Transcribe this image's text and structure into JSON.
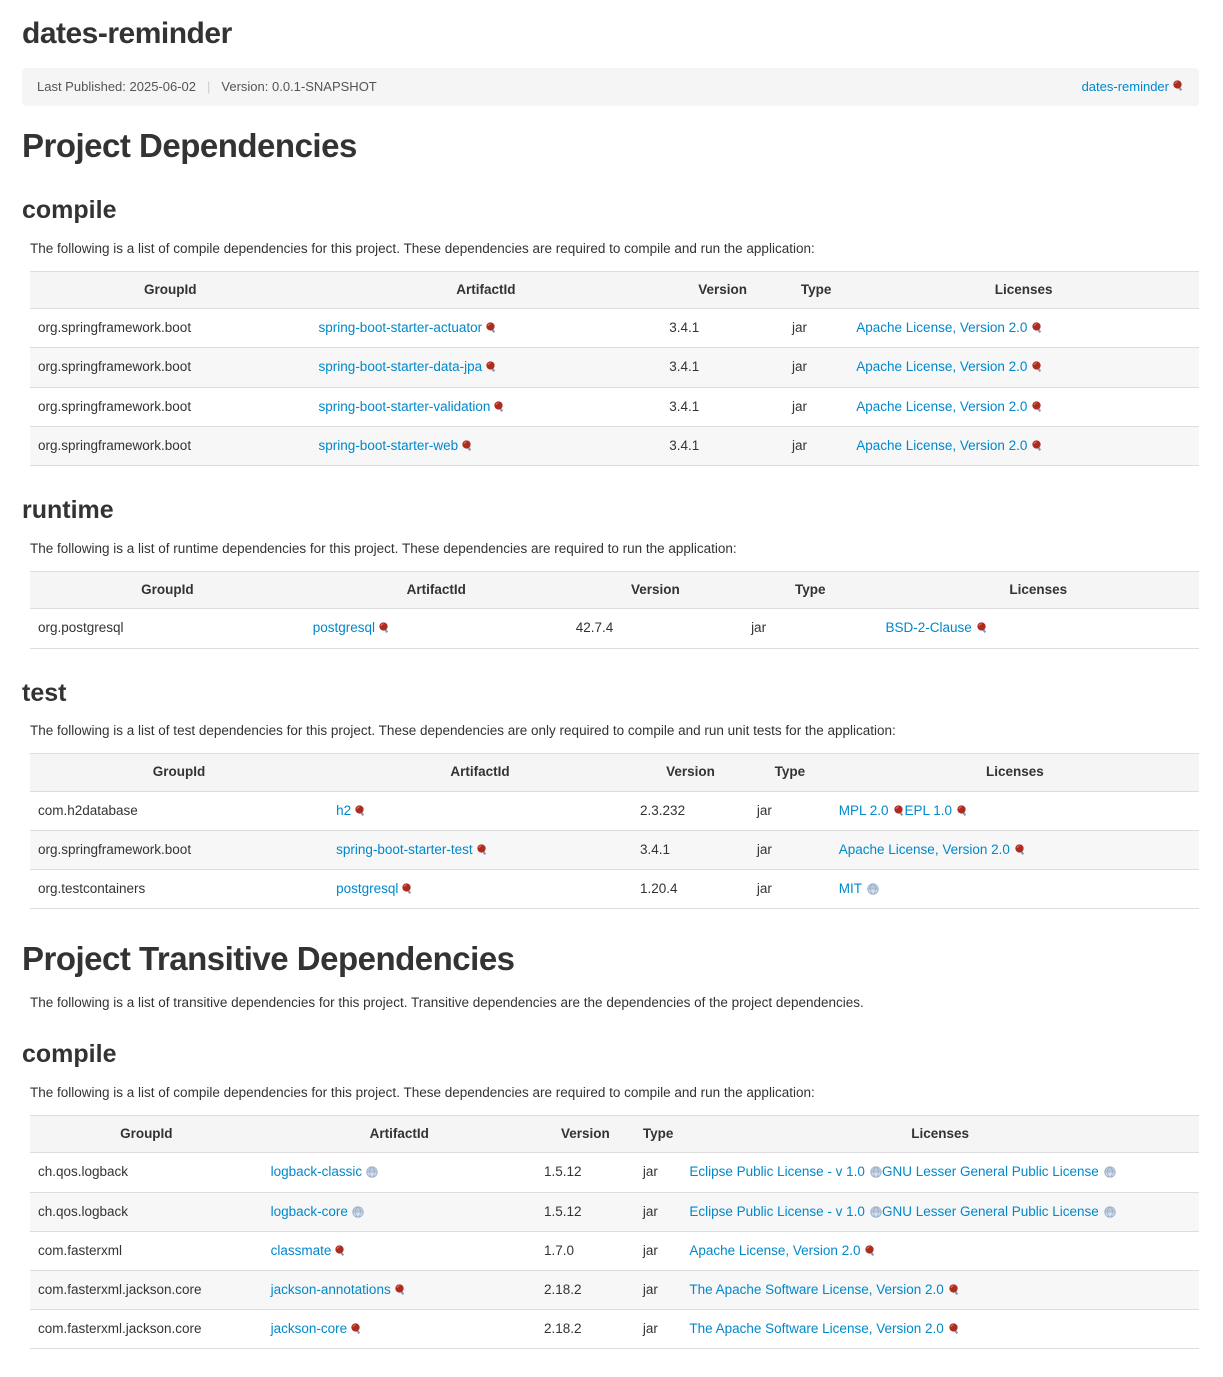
{
  "page_title": "dates-reminder",
  "banner": {
    "last_published": "Last Published: 2025-06-02",
    "version": "Version: 0.0.1-SNAPSHOT",
    "project_link_label": "dates-reminder",
    "project_link_icon": "seal"
  },
  "headings": {
    "project_dependencies": "Project Dependencies",
    "project_transitive_dependencies": "Project Transitive Dependencies"
  },
  "transitive_intro": "The following is a list of transitive dependencies for this project. Transitive dependencies are the dependencies of the project dependencies.",
  "colors": {
    "link_blue": "#0088cc",
    "heading_gray": "#333333",
    "banner_bg": "#f5f5f5",
    "row_stripe": "#f7f7f7",
    "table_border": "#dddddd",
    "seal_icon_red": "#ad2c20",
    "globe_icon_blue": "#93a9c4"
  },
  "sections": [
    {
      "title": "compile",
      "intro": "The following is a list of compile dependencies for this project. These dependencies are required to compile and run the application:",
      "columns": [
        "GroupId",
        "ArtifactId",
        "Version",
        "Type",
        "Licenses"
      ],
      "rows": [
        {
          "group": "org.springframework.boot",
          "artifact": {
            "label": "spring-boot-starter-actuator",
            "icon": "seal"
          },
          "version": "3.4.1",
          "type": "jar",
          "licenses": [
            {
              "label": "Apache License, Version 2.0",
              "icon": "seal"
            }
          ]
        },
        {
          "group": "org.springframework.boot",
          "artifact": {
            "label": "spring-boot-starter-data-jpa",
            "icon": "seal"
          },
          "version": "3.4.1",
          "type": "jar",
          "licenses": [
            {
              "label": "Apache License, Version 2.0",
              "icon": "seal"
            }
          ]
        },
        {
          "group": "org.springframework.boot",
          "artifact": {
            "label": "spring-boot-starter-validation",
            "icon": "seal"
          },
          "version": "3.4.1",
          "type": "jar",
          "licenses": [
            {
              "label": "Apache License, Version 2.0",
              "icon": "seal"
            }
          ]
        },
        {
          "group": "org.springframework.boot",
          "artifact": {
            "label": "spring-boot-starter-web",
            "icon": "seal"
          },
          "version": "3.4.1",
          "type": "jar",
          "licenses": [
            {
              "label": "Apache License, Version 2.0",
              "icon": "seal"
            }
          ]
        }
      ]
    },
    {
      "title": "runtime",
      "intro": "The following is a list of runtime dependencies for this project. These dependencies are required to run the application:",
      "columns": [
        "GroupId",
        "ArtifactId",
        "Version",
        "Type",
        "Licenses"
      ],
      "rows": [
        {
          "group": "org.postgresql",
          "artifact": {
            "label": "postgresql",
            "icon": "seal"
          },
          "version": "42.7.4",
          "type": "jar",
          "licenses": [
            {
              "label": "BSD-2-Clause",
              "icon": "seal"
            }
          ]
        }
      ]
    },
    {
      "title": "test",
      "intro": "The following is a list of test dependencies for this project. These dependencies are only required to compile and run unit tests for the application:",
      "columns": [
        "GroupId",
        "ArtifactId",
        "Version",
        "Type",
        "Licenses"
      ],
      "rows": [
        {
          "group": "com.h2database",
          "artifact": {
            "label": "h2",
            "icon": "seal"
          },
          "version": "2.3.232",
          "type": "jar",
          "licenses": [
            {
              "label": "MPL 2.0",
              "icon": "seal"
            },
            {
              "label": "EPL 1.0",
              "icon": "seal"
            }
          ]
        },
        {
          "group": "org.springframework.boot",
          "artifact": {
            "label": "spring-boot-starter-test",
            "icon": "seal"
          },
          "version": "3.4.1",
          "type": "jar",
          "licenses": [
            {
              "label": "Apache License, Version 2.0",
              "icon": "seal"
            }
          ]
        },
        {
          "group": "org.testcontainers",
          "artifact": {
            "label": "postgresql",
            "icon": "seal"
          },
          "version": "1.20.4",
          "type": "jar",
          "licenses": [
            {
              "label": "MIT",
              "icon": "globe"
            }
          ]
        }
      ]
    },
    {
      "title": "compile",
      "intro": "The following is a list of compile dependencies for this project. These dependencies are required to compile and run the application:",
      "columns": [
        "GroupId",
        "ArtifactId",
        "Version",
        "Type",
        "Licenses"
      ],
      "rows": [
        {
          "group": "ch.qos.logback",
          "artifact": {
            "label": "logback-classic",
            "icon": "globe"
          },
          "version": "1.5.12",
          "type": "jar",
          "licenses": [
            {
              "label": "Eclipse Public License - v 1.0",
              "icon": "globe"
            },
            {
              "label": "GNU Lesser General Public License",
              "icon": "globe"
            }
          ]
        },
        {
          "group": "ch.qos.logback",
          "artifact": {
            "label": "logback-core",
            "icon": "globe"
          },
          "version": "1.5.12",
          "type": "jar",
          "licenses": [
            {
              "label": "Eclipse Public License - v 1.0",
              "icon": "globe"
            },
            {
              "label": "GNU Lesser General Public License",
              "icon": "globe"
            }
          ]
        },
        {
          "group": "com.fasterxml",
          "artifact": {
            "label": "classmate",
            "icon": "seal"
          },
          "version": "1.7.0",
          "type": "jar",
          "licenses": [
            {
              "label": "Apache License, Version 2.0",
              "icon": "seal"
            }
          ]
        },
        {
          "group": "com.fasterxml.jackson.core",
          "artifact": {
            "label": "jackson-annotations",
            "icon": "seal"
          },
          "version": "2.18.2",
          "type": "jar",
          "licenses": [
            {
              "label": "The Apache Software License, Version 2.0",
              "icon": "seal"
            }
          ]
        },
        {
          "group": "com.fasterxml.jackson.core",
          "artifact": {
            "label": "jackson-core",
            "icon": "seal"
          },
          "version": "2.18.2",
          "type": "jar",
          "licenses": [
            {
              "label": "The Apache Software License, Version 2.0",
              "icon": "seal"
            }
          ]
        }
      ]
    }
  ]
}
